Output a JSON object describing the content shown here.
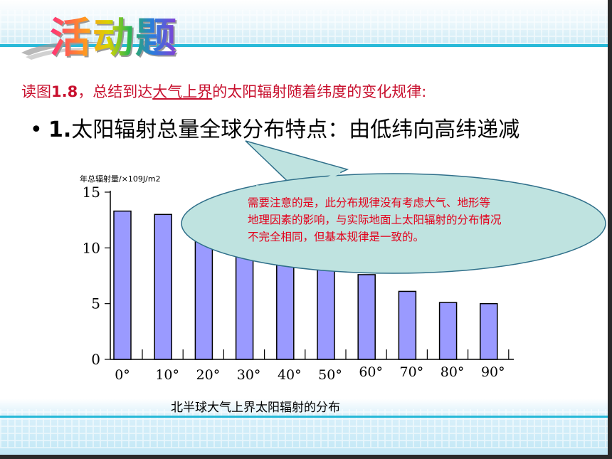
{
  "slide": {
    "title": "活动题",
    "instruction": {
      "prefix": "读图",
      "fig": "1.8",
      "mid": "，总结到达",
      "underlined": "大气上界",
      "suffix": "的太阳辐射随着纬度的变化规律:"
    },
    "bullet": {
      "symbol": "•",
      "number": "1.",
      "text": "太阳辐射总量全球分布特点：由低纬向高纬递减"
    },
    "callout": {
      "lines": [
        "需要注意的是，此分布规律没有考虑大气、地形等",
        "地理因素的影响，与实际地面上太阳辐射的分布情况",
        "不完全相同，但基本规律是一致的。"
      ]
    },
    "colors": {
      "bar_fill": "#9a9aff",
      "callout_fill": "#bfe3e0",
      "callout_text": "#e3001b",
      "instruction_text": "#c8102e",
      "accent_line": "#27b9d8"
    }
  },
  "chart_data": {
    "type": "bar",
    "ylabel": "年总辐射量/×109J/m2",
    "caption": "北半球大气上界太阳辐射的分布",
    "categories": [
      "0°",
      "10°",
      "20°",
      "30°",
      "40°",
      "50°",
      "60°",
      "70°",
      "80°",
      "90°"
    ],
    "values": [
      13.3,
      13.0,
      12.2,
      11.0,
      9.5,
      8.5,
      7.6,
      6.1,
      5.1,
      5.0
    ],
    "ylim": [
      0,
      15
    ],
    "yticks": [
      0,
      5,
      10,
      15
    ],
    "grid": false
  }
}
